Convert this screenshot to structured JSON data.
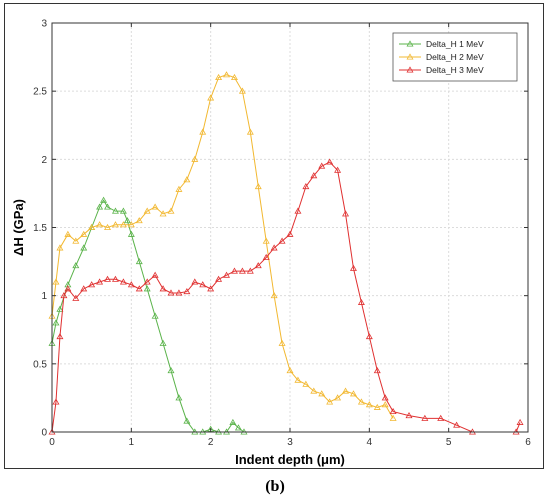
{
  "caption": "(b)",
  "chart_data": {
    "type": "line",
    "xlabel": "Indent depth (μm)",
    "ylabel": "ΔH (GPa)",
    "xlim": [
      0,
      6
    ],
    "ylim": [
      0,
      3
    ],
    "xticks": [
      "0",
      "1",
      "2",
      "3",
      "4",
      "5",
      "6"
    ],
    "yticks": [
      "0",
      "0.5",
      "1",
      "1.5",
      "2",
      "2.5",
      "3"
    ],
    "grid": true,
    "legend_position": "top-right",
    "marker": "triangle",
    "series": [
      {
        "name": "Delta_H 1 MeV",
        "color": "#5ab34a",
        "points": [
          [
            0.0,
            0.65
          ],
          [
            0.05,
            0.8
          ],
          [
            0.1,
            0.9
          ],
          [
            0.2,
            1.08
          ],
          [
            0.3,
            1.22
          ],
          [
            0.4,
            1.35
          ],
          [
            0.5,
            1.5
          ],
          [
            0.6,
            1.65
          ],
          [
            0.65,
            1.7
          ],
          [
            0.7,
            1.65
          ],
          [
            0.8,
            1.62
          ],
          [
            0.9,
            1.62
          ],
          [
            0.95,
            1.55
          ],
          [
            1.0,
            1.45
          ],
          [
            1.1,
            1.25
          ],
          [
            1.2,
            1.05
          ],
          [
            1.3,
            0.85
          ],
          [
            1.4,
            0.65
          ],
          [
            1.5,
            0.45
          ],
          [
            1.6,
            0.25
          ],
          [
            1.7,
            0.08
          ],
          [
            1.8,
            0.0
          ],
          [
            1.9,
            0.0
          ],
          [
            2.0,
            0.02
          ],
          [
            2.1,
            0.0
          ],
          [
            2.2,
            0.0
          ],
          [
            2.28,
            0.07
          ],
          [
            2.35,
            0.03
          ],
          [
            2.42,
            0.0
          ]
        ]
      },
      {
        "name": "Delta_H 2 MeV",
        "color": "#f2b830",
        "points": [
          [
            0.0,
            0.85
          ],
          [
            0.05,
            1.1
          ],
          [
            0.1,
            1.35
          ],
          [
            0.2,
            1.45
          ],
          [
            0.3,
            1.4
          ],
          [
            0.4,
            1.45
          ],
          [
            0.5,
            1.5
          ],
          [
            0.6,
            1.52
          ],
          [
            0.7,
            1.5
          ],
          [
            0.8,
            1.52
          ],
          [
            0.9,
            1.52
          ],
          [
            1.0,
            1.52
          ],
          [
            1.1,
            1.55
          ],
          [
            1.2,
            1.62
          ],
          [
            1.3,
            1.65
          ],
          [
            1.4,
            1.6
          ],
          [
            1.5,
            1.62
          ],
          [
            1.6,
            1.78
          ],
          [
            1.7,
            1.85
          ],
          [
            1.8,
            2.0
          ],
          [
            1.9,
            2.2
          ],
          [
            2.0,
            2.45
          ],
          [
            2.1,
            2.6
          ],
          [
            2.2,
            2.62
          ],
          [
            2.3,
            2.6
          ],
          [
            2.4,
            2.5
          ],
          [
            2.5,
            2.2
          ],
          [
            2.6,
            1.8
          ],
          [
            2.7,
            1.4
          ],
          [
            2.8,
            1.0
          ],
          [
            2.9,
            0.65
          ],
          [
            3.0,
            0.45
          ],
          [
            3.1,
            0.38
          ],
          [
            3.2,
            0.35
          ],
          [
            3.3,
            0.3
          ],
          [
            3.4,
            0.28
          ],
          [
            3.5,
            0.22
          ],
          [
            3.6,
            0.25
          ],
          [
            3.7,
            0.3
          ],
          [
            3.8,
            0.28
          ],
          [
            3.9,
            0.22
          ],
          [
            4.0,
            0.2
          ],
          [
            4.1,
            0.18
          ],
          [
            4.2,
            0.2
          ],
          [
            4.3,
            0.1
          ]
        ]
      },
      {
        "name": "Delta_H 3 MeV",
        "color": "#e03030",
        "points": [
          [
            0.0,
            0.0
          ],
          [
            0.05,
            0.22
          ],
          [
            0.1,
            0.7
          ],
          [
            0.15,
            1.0
          ],
          [
            0.2,
            1.05
          ],
          [
            0.3,
            0.98
          ],
          [
            0.4,
            1.05
          ],
          [
            0.5,
            1.08
          ],
          [
            0.6,
            1.1
          ],
          [
            0.7,
            1.12
          ],
          [
            0.8,
            1.12
          ],
          [
            0.9,
            1.1
          ],
          [
            1.0,
            1.08
          ],
          [
            1.1,
            1.05
          ],
          [
            1.2,
            1.1
          ],
          [
            1.3,
            1.15
          ],
          [
            1.4,
            1.05
          ],
          [
            1.5,
            1.02
          ],
          [
            1.6,
            1.02
          ],
          [
            1.7,
            1.03
          ],
          [
            1.8,
            1.1
          ],
          [
            1.9,
            1.08
          ],
          [
            2.0,
            1.05
          ],
          [
            2.1,
            1.12
          ],
          [
            2.2,
            1.15
          ],
          [
            2.3,
            1.18
          ],
          [
            2.4,
            1.18
          ],
          [
            2.5,
            1.18
          ],
          [
            2.6,
            1.22
          ],
          [
            2.7,
            1.28
          ],
          [
            2.8,
            1.35
          ],
          [
            2.9,
            1.4
          ],
          [
            3.0,
            1.45
          ],
          [
            3.1,
            1.62
          ],
          [
            3.2,
            1.8
          ],
          [
            3.3,
            1.88
          ],
          [
            3.4,
            1.95
          ],
          [
            3.5,
            1.98
          ],
          [
            3.6,
            1.92
          ],
          [
            3.7,
            1.6
          ],
          [
            3.8,
            1.2
          ],
          [
            3.9,
            0.95
          ],
          [
            4.0,
            0.7
          ],
          [
            4.1,
            0.45
          ],
          [
            4.2,
            0.25
          ],
          [
            4.3,
            0.15
          ],
          [
            4.5,
            0.12
          ],
          [
            4.7,
            0.1
          ],
          [
            4.9,
            0.1
          ],
          [
            5.1,
            0.05
          ],
          [
            5.3,
            0.0
          ],
          [
            5.85,
            0.0
          ],
          [
            5.9,
            0.07
          ]
        ]
      }
    ]
  }
}
